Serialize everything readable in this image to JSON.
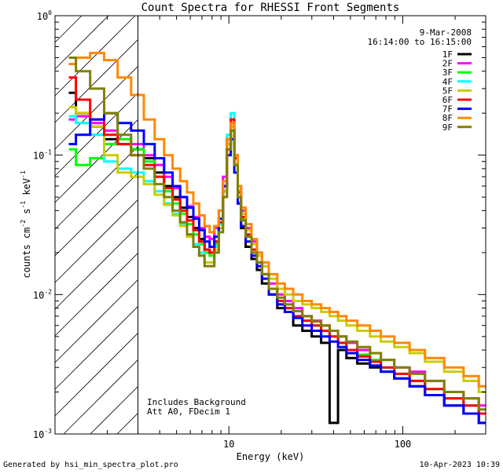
{
  "chart_data": {
    "type": "line",
    "title": "Count Spectra for RHESSI Front Segments",
    "xlabel": "Energy (keV)",
    "ylabel": "counts cm^-2 s^-1 keV^-1",
    "xscale": "log",
    "yscale": "log",
    "xlim": [
      1.0,
      300.0
    ],
    "ylim": [
      0.001,
      1.0
    ],
    "x_ticks": [
      10,
      100
    ],
    "x_tick_labels": [
      "10",
      "100"
    ],
    "y_ticks": [
      0.001,
      0.01,
      0.1,
      1.0
    ],
    "y_tick_labels": [
      {
        "base": "10",
        "exp": "-3"
      },
      {
        "base": "10",
        "exp": "-2"
      },
      {
        "base": "10",
        "exp": "-1"
      },
      {
        "base": "10",
        "exp": "0"
      }
    ],
    "attenuator_cutoff_keV": 3.0,
    "date": "9-Mar-2008",
    "time_range": "16:14:00 to 16:15:00",
    "annotation_lines": [
      "Includes Background",
      "Att A0, FDecim 1"
    ],
    "series": [
      {
        "name": "1F",
        "color": "#000000",
        "x": [
          1.2,
          1.45,
          1.75,
          2.1,
          2.5,
          3.0,
          3.5,
          4.0,
          4.5,
          5.0,
          5.5,
          6.0,
          6.5,
          7.0,
          7.5,
          8.0,
          8.5,
          9.0,
          9.5,
          10.0,
          10.5,
          11.0,
          11.5,
          12.0,
          13.0,
          14.0,
          15.0,
          16.0,
          18.0,
          20.0,
          22.0,
          25.0,
          28.0,
          32.0,
          36.0,
          40.0,
          45.0,
          50.0,
          60.0,
          70.0,
          80.0,
          100.0,
          120.0,
          150.0,
          200.0,
          250.0,
          300.0
        ],
        "values": [
          0.28,
          0.2,
          0.16,
          0.13,
          0.12,
          0.11,
          0.095,
          0.075,
          0.06,
          0.05,
          0.042,
          0.036,
          0.03,
          0.025,
          0.021,
          0.02,
          0.024,
          0.032,
          0.06,
          0.12,
          0.16,
          0.085,
          0.045,
          0.03,
          0.022,
          0.018,
          0.015,
          0.012,
          0.01,
          0.008,
          0.0075,
          0.006,
          0.0055,
          0.005,
          0.0045,
          0.0012,
          0.004,
          0.0035,
          0.0032,
          0.003,
          0.0028,
          0.0025,
          0.0022,
          0.0019,
          0.0016,
          0.0014,
          0.0012
        ]
      },
      {
        "name": "2F",
        "color": "#ff00ff",
        "x": [
          1.2,
          1.45,
          1.75,
          2.1,
          2.5,
          3.0,
          3.5,
          4.0,
          4.5,
          5.0,
          5.5,
          6.0,
          6.5,
          7.0,
          7.5,
          8.0,
          8.5,
          9.0,
          9.5,
          10.0,
          10.5,
          11.0,
          11.5,
          12.0,
          13.0,
          14.0,
          15.0,
          16.0,
          18.0,
          20.0,
          22.0,
          25.0,
          28.0,
          32.0,
          36.0,
          40.0,
          45.0,
          50.0,
          60.0,
          70.0,
          80.0,
          100.0,
          120.0,
          150.0,
          200.0,
          250.0,
          300.0
        ],
        "values": [
          0.18,
          0.19,
          0.17,
          0.15,
          0.13,
          0.12,
          0.1,
          0.085,
          0.07,
          0.058,
          0.05,
          0.043,
          0.036,
          0.03,
          0.026,
          0.025,
          0.03,
          0.04,
          0.07,
          0.13,
          0.17,
          0.1,
          0.06,
          0.04,
          0.03,
          0.024,
          0.02,
          0.016,
          0.012,
          0.01,
          0.009,
          0.008,
          0.007,
          0.0065,
          0.006,
          0.0055,
          0.005,
          0.0045,
          0.004,
          0.0038,
          0.0034,
          0.003,
          0.0028,
          0.0024,
          0.002,
          0.0018,
          0.0016
        ]
      },
      {
        "name": "3F",
        "color": "#00ff00",
        "x": [
          1.2,
          1.45,
          1.75,
          2.1,
          2.5,
          3.0,
          3.5,
          4.0,
          4.5,
          5.0,
          5.5,
          6.0,
          6.5,
          7.0,
          7.5,
          8.0,
          8.5,
          9.0,
          9.5,
          10.0,
          10.5,
          11.0,
          11.5,
          12.0,
          13.0,
          14.0,
          15.0,
          16.0,
          18.0,
          20.0,
          22.0,
          25.0,
          28.0,
          32.0,
          36.0,
          40.0,
          45.0,
          50.0,
          60.0,
          70.0,
          80.0,
          100.0,
          120.0,
          150.0,
          200.0,
          250.0,
          300.0
        ],
        "values": [
          0.11,
          0.085,
          0.095,
          0.12,
          0.13,
          0.11,
          0.09,
          0.07,
          0.055,
          0.045,
          0.038,
          0.032,
          0.027,
          0.023,
          0.02,
          0.019,
          0.023,
          0.03,
          0.055,
          0.11,
          0.15,
          0.085,
          0.05,
          0.035,
          0.026,
          0.021,
          0.017,
          0.014,
          0.011,
          0.009,
          0.008,
          0.007,
          0.0065,
          0.006,
          0.0055,
          0.005,
          0.0045,
          0.004,
          0.0037,
          0.0034,
          0.003,
          0.0027,
          0.0024,
          0.0021,
          0.0018,
          0.0016,
          0.0014
        ]
      },
      {
        "name": "4F",
        "color": "#00ffff",
        "x": [
          1.2,
          1.45,
          1.75,
          2.1,
          2.5,
          3.0,
          3.5,
          4.0,
          4.5,
          5.0,
          5.5,
          6.0,
          6.5,
          7.0,
          7.5,
          8.0,
          8.5,
          9.0,
          9.5,
          10.0,
          10.5,
          11.0,
          11.5,
          12.0,
          13.0,
          14.0,
          15.0,
          16.0,
          18.0,
          20.0,
          22.0,
          25.0,
          28.0,
          32.0,
          36.0,
          40.0,
          45.0,
          50.0,
          60.0,
          70.0,
          80.0,
          100.0,
          120.0,
          150.0,
          200.0,
          250.0,
          300.0
        ],
        "values": [
          0.19,
          0.17,
          0.14,
          0.09,
          0.08,
          0.075,
          0.065,
          0.055,
          0.045,
          0.038,
          0.032,
          0.027,
          0.023,
          0.02,
          0.017,
          0.017,
          0.022,
          0.032,
          0.06,
          0.14,
          0.2,
          0.1,
          0.055,
          0.036,
          0.027,
          0.021,
          0.017,
          0.014,
          0.011,
          0.009,
          0.008,
          0.007,
          0.0065,
          0.006,
          0.0055,
          0.005,
          0.0045,
          0.004,
          0.0036,
          0.0033,
          0.003,
          0.0027,
          0.0024,
          0.0021,
          0.0018,
          0.0016,
          0.0014
        ]
      },
      {
        "name": "5F",
        "color": "#cccc00",
        "x": [
          1.2,
          1.45,
          1.75,
          2.1,
          2.5,
          3.0,
          3.5,
          4.0,
          4.5,
          5.0,
          5.5,
          6.0,
          6.5,
          7.0,
          7.5,
          8.0,
          8.5,
          9.0,
          9.5,
          10.0,
          10.5,
          11.0,
          11.5,
          12.0,
          13.0,
          14.0,
          15.0,
          16.0,
          18.0,
          20.0,
          22.0,
          25.0,
          28.0,
          32.0,
          36.0,
          40.0,
          45.0,
          50.0,
          60.0,
          70.0,
          80.0,
          100.0,
          120.0,
          150.0,
          200.0,
          250.0,
          300.0
        ],
        "values": [
          0.22,
          0.2,
          0.16,
          0.1,
          0.075,
          0.07,
          0.062,
          0.052,
          0.044,
          0.037,
          0.031,
          0.026,
          0.022,
          0.019,
          0.017,
          0.017,
          0.021,
          0.03,
          0.055,
          0.12,
          0.16,
          0.095,
          0.056,
          0.038,
          0.029,
          0.023,
          0.019,
          0.016,
          0.013,
          0.011,
          0.01,
          0.009,
          0.0085,
          0.008,
          0.0075,
          0.007,
          0.0065,
          0.006,
          0.0055,
          0.005,
          0.0046,
          0.0042,
          0.0038,
          0.0033,
          0.0028,
          0.0024,
          0.002
        ]
      },
      {
        "name": "6F",
        "color": "#ff0000",
        "x": [
          1.2,
          1.45,
          1.75,
          2.1,
          2.5,
          3.0,
          3.5,
          4.0,
          4.5,
          5.0,
          5.5,
          6.0,
          6.5,
          7.0,
          7.5,
          8.0,
          8.5,
          9.0,
          9.5,
          10.0,
          10.5,
          11.0,
          11.5,
          12.0,
          13.0,
          14.0,
          15.0,
          16.0,
          18.0,
          20.0,
          22.0,
          25.0,
          28.0,
          32.0,
          36.0,
          40.0,
          45.0,
          50.0,
          60.0,
          70.0,
          80.0,
          100.0,
          120.0,
          150.0,
          200.0,
          250.0,
          300.0
        ],
        "values": [
          0.36,
          0.25,
          0.18,
          0.14,
          0.12,
          0.1,
          0.085,
          0.07,
          0.058,
          0.048,
          0.04,
          0.034,
          0.029,
          0.024,
          0.021,
          0.02,
          0.024,
          0.033,
          0.06,
          0.13,
          0.18,
          0.095,
          0.054,
          0.036,
          0.027,
          0.021,
          0.017,
          0.014,
          0.011,
          0.009,
          0.008,
          0.007,
          0.0065,
          0.006,
          0.0055,
          0.005,
          0.0045,
          0.004,
          0.0036,
          0.0033,
          0.003,
          0.0027,
          0.0024,
          0.0021,
          0.0018,
          0.0016,
          0.0014
        ]
      },
      {
        "name": "7F",
        "color": "#0000ff",
        "x": [
          1.2,
          1.45,
          1.75,
          2.1,
          2.5,
          3.0,
          3.5,
          4.0,
          4.5,
          5.0,
          5.5,
          6.0,
          6.5,
          7.0,
          7.5,
          8.0,
          8.5,
          9.0,
          9.5,
          10.0,
          10.5,
          11.0,
          11.5,
          12.0,
          13.0,
          14.0,
          15.0,
          16.0,
          18.0,
          20.0,
          22.0,
          25.0,
          28.0,
          32.0,
          36.0,
          40.0,
          45.0,
          50.0,
          60.0,
          70.0,
          80.0,
          100.0,
          120.0,
          150.0,
          200.0,
          250.0,
          300.0
        ],
        "values": [
          0.12,
          0.14,
          0.18,
          0.2,
          0.17,
          0.15,
          0.12,
          0.095,
          0.075,
          0.06,
          0.05,
          0.042,
          0.035,
          0.029,
          0.024,
          0.022,
          0.026,
          0.035,
          0.06,
          0.1,
          0.13,
          0.075,
          0.045,
          0.031,
          0.024,
          0.019,
          0.016,
          0.013,
          0.01,
          0.0085,
          0.0075,
          0.0068,
          0.006,
          0.0055,
          0.005,
          0.0046,
          0.0042,
          0.0038,
          0.0034,
          0.0031,
          0.0028,
          0.0025,
          0.0022,
          0.0019,
          0.0016,
          0.0014,
          0.0012
        ]
      },
      {
        "name": "8F",
        "color": "#ff8800",
        "x": [
          1.2,
          1.45,
          1.75,
          2.1,
          2.5,
          3.0,
          3.5,
          4.0,
          4.5,
          5.0,
          5.5,
          6.0,
          6.5,
          7.0,
          7.5,
          8.0,
          8.5,
          9.0,
          9.5,
          10.0,
          10.5,
          11.0,
          11.5,
          12.0,
          13.0,
          14.0,
          15.0,
          16.0,
          18.0,
          20.0,
          22.0,
          25.0,
          28.0,
          32.0,
          36.0,
          40.0,
          45.0,
          50.0,
          60.0,
          70.0,
          80.0,
          100.0,
          120.0,
          150.0,
          200.0,
          250.0,
          300.0
        ],
        "values": [
          0.45,
          0.5,
          0.54,
          0.48,
          0.36,
          0.27,
          0.18,
          0.13,
          0.1,
          0.08,
          0.065,
          0.054,
          0.045,
          0.037,
          0.031,
          0.028,
          0.031,
          0.04,
          0.065,
          0.13,
          0.17,
          0.1,
          0.06,
          0.042,
          0.032,
          0.025,
          0.02,
          0.017,
          0.014,
          0.012,
          0.011,
          0.01,
          0.009,
          0.0085,
          0.008,
          0.0075,
          0.007,
          0.0065,
          0.006,
          0.0055,
          0.005,
          0.0045,
          0.004,
          0.0035,
          0.003,
          0.0026,
          0.0022
        ]
      },
      {
        "name": "9F",
        "color": "#808000",
        "x": [
          1.2,
          1.45,
          1.75,
          2.1,
          2.5,
          3.0,
          3.5,
          4.0,
          4.5,
          5.0,
          5.5,
          6.0,
          6.5,
          7.0,
          7.5,
          8.0,
          8.5,
          9.0,
          9.5,
          10.0,
          10.5,
          11.0,
          11.5,
          12.0,
          13.0,
          14.0,
          15.0,
          16.0,
          18.0,
          20.0,
          22.0,
          25.0,
          28.0,
          32.0,
          36.0,
          40.0,
          45.0,
          50.0,
          60.0,
          70.0,
          80.0,
          100.0,
          120.0,
          150.0,
          200.0,
          250.0,
          300.0
        ],
        "values": [
          0.5,
          0.4,
          0.3,
          0.2,
          0.14,
          0.1,
          0.08,
          0.062,
          0.05,
          0.04,
          0.033,
          0.027,
          0.022,
          0.019,
          0.016,
          0.016,
          0.02,
          0.028,
          0.05,
          0.11,
          0.15,
          0.085,
          0.05,
          0.034,
          0.026,
          0.02,
          0.017,
          0.014,
          0.011,
          0.0095,
          0.0085,
          0.0076,
          0.007,
          0.0064,
          0.006,
          0.0055,
          0.005,
          0.0046,
          0.0042,
          0.0038,
          0.0034,
          0.003,
          0.0027,
          0.0024,
          0.002,
          0.0018,
          0.0015
        ]
      }
    ]
  },
  "footer": {
    "generated_by": "Generated by hsi_min_spectra_plot.pro",
    "timestamp": "10-Apr-2023 10:39"
  }
}
